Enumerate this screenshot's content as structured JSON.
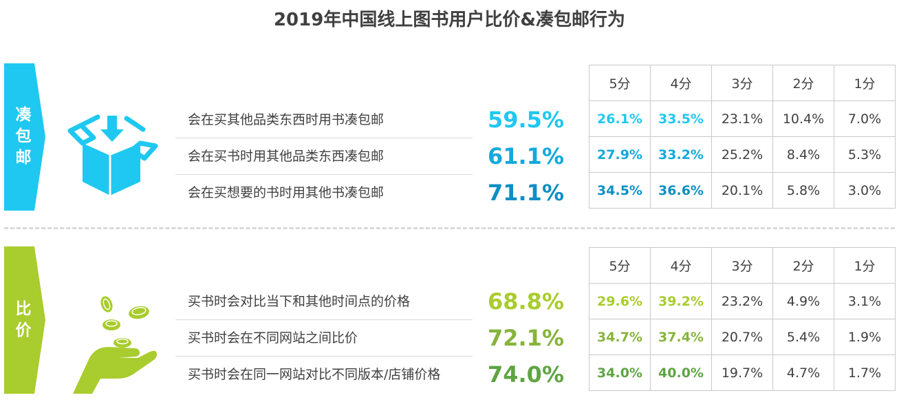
{
  "title": "2019年中国线上图书用户比价&凑包邮行为",
  "chart_data": [
    {
      "type": "table",
      "name": "凑包邮",
      "accent_color": "#1fc8f0",
      "rows": [
        {
          "label": "会在买其他品类东西时用书凑包邮",
          "total": "59.5%",
          "total_color": "#1fc8f0",
          "scores": [
            "26.1%",
            "33.5%",
            "23.1%",
            "10.4%",
            "7.0%"
          ]
        },
        {
          "label": "会在买书时用其他品类东西凑包邮",
          "total": "61.1%",
          "total_color": "#13a9dd",
          "scores": [
            "27.9%",
            "33.2%",
            "25.2%",
            "8.4%",
            "5.3%"
          ]
        },
        {
          "label": "会在买想要的书时用其他书凑包邮",
          "total": "71.1%",
          "total_color": "#0e8fc3",
          "scores": [
            "34.5%",
            "36.6%",
            "20.1%",
            "5.8%",
            "3.0%"
          ]
        }
      ],
      "columns": [
        "5分",
        "4分",
        "3分",
        "2分",
        "1分"
      ],
      "highlight_colors": [
        "#1fc8f0",
        "#13a9dd",
        "#0e8fc3"
      ]
    },
    {
      "type": "table",
      "name": "比价",
      "accent_color": "#a9cc2e",
      "rows": [
        {
          "label": "买书时会对比当下和其他时间点的价格",
          "total": "68.8%",
          "total_color": "#a9cc2e",
          "scores": [
            "29.6%",
            "39.2%",
            "23.2%",
            "4.9%",
            "3.1%"
          ]
        },
        {
          "label": "买书时会在不同网站之间比价",
          "total": "72.1%",
          "total_color": "#86b43b",
          "scores": [
            "34.7%",
            "37.4%",
            "20.7%",
            "5.4%",
            "1.9%"
          ]
        },
        {
          "label": "买书时会在同一网站对比不同版本/店铺价格",
          "total": "74.0%",
          "total_color": "#5fa443",
          "scores": [
            "34.0%",
            "40.0%",
            "19.7%",
            "4.7%",
            "1.7%"
          ]
        }
      ],
      "columns": [
        "5分",
        "4分",
        "3分",
        "2分",
        "1分"
      ],
      "highlight_colors": [
        "#a9cc2e",
        "#86b43b",
        "#5fa443"
      ]
    }
  ],
  "sections": [
    {
      "label_chars": [
        "凑",
        "包",
        "邮"
      ],
      "icon": "open-box-icon"
    },
    {
      "label_chars": [
        "比",
        "价"
      ],
      "icon": "hand-coins-icon"
    }
  ]
}
